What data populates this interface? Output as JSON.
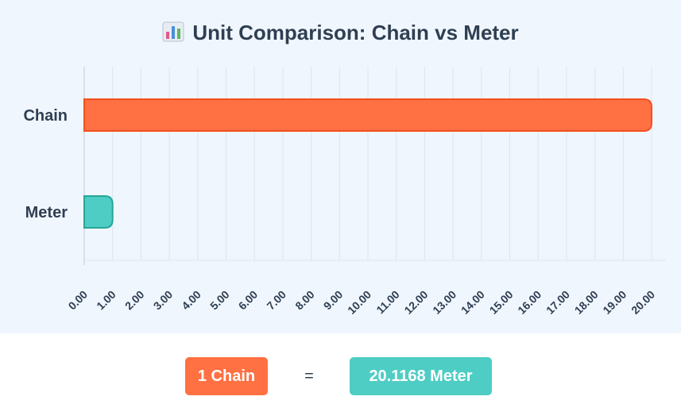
{
  "title": "Unit Comparison: Chain vs Meter",
  "title_icon": "bar-chart-icon",
  "chart_data": {
    "type": "bar",
    "orientation": "horizontal",
    "title": "Unit Comparison: Chain vs Meter",
    "categories": [
      "Chain",
      "Meter"
    ],
    "values": [
      20.1168,
      1
    ],
    "colors": [
      "#ff7043",
      "#4ecdc4"
    ],
    "border_colors": [
      "#f4511e",
      "#26a69a"
    ],
    "xlim": [
      0,
      20
    ],
    "x_ticks": [
      "0.00",
      "1.00",
      "2.00",
      "3.00",
      "4.00",
      "5.00",
      "6.00",
      "7.00",
      "8.00",
      "9.00",
      "10.00",
      "11.00",
      "12.00",
      "13.00",
      "14.00",
      "15.00",
      "16.00",
      "17.00",
      "18.00",
      "19.00",
      "20.00"
    ],
    "grid": true,
    "legend": "none"
  },
  "conversion": {
    "from_label": "1 Chain",
    "equals": "=",
    "to_label": "20.1168 Meter"
  },
  "colors": {
    "panel_background": "#f0f6fe",
    "text": "#2f3f52",
    "grid": "#dde5ee"
  }
}
